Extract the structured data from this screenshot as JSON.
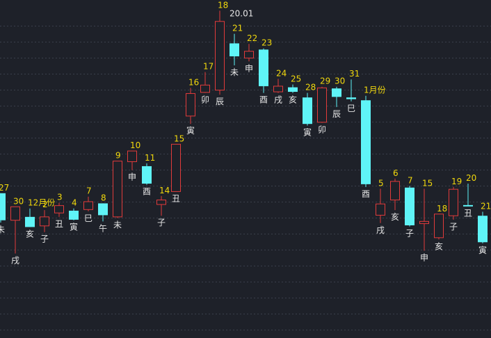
{
  "chart_data": {
    "type": "candlestick",
    "title": "",
    "xlabel": "",
    "ylabel": "",
    "ylim": [
      14.2,
      20.2
    ],
    "grid": true,
    "colors": {
      "up": "#e23b3b",
      "down": "#5ff4f7",
      "background": "#1e2129",
      "day_label": "#f1d80c",
      "branch_label": "#e6e6e6"
    },
    "peak_annotation": {
      "text": "20.01",
      "value": 20.01
    },
    "candles": [
      {
        "day": "27",
        "branch": "未",
        "open": 16.77,
        "close": 16.29,
        "high": 16.77,
        "low": 16.25
      },
      {
        "day": "30",
        "branch": "戌",
        "open": 16.29,
        "close": 16.53,
        "high": 16.53,
        "low": 15.7
      },
      {
        "day": "12月份",
        "branch": "亥",
        "open": 16.35,
        "close": 16.17,
        "high": 16.5,
        "low": 16.17
      },
      {
        "day": "2",
        "branch": "子",
        "open": 16.19,
        "close": 16.35,
        "high": 16.47,
        "low": 16.08
      },
      {
        "day": "3",
        "branch": "丑",
        "open": 16.42,
        "close": 16.55,
        "high": 16.6,
        "low": 16.35
      },
      {
        "day": "4",
        "branch": "寅",
        "open": 16.46,
        "close": 16.3,
        "high": 16.5,
        "low": 16.29
      },
      {
        "day": "7",
        "branch": "巳",
        "open": 16.48,
        "close": 16.62,
        "high": 16.71,
        "low": 16.45
      },
      {
        "day": "8",
        "branch": "午",
        "open": 16.59,
        "close": 16.38,
        "high": 16.59,
        "low": 16.27
      },
      {
        "day": "9",
        "branch": "未",
        "open": 16.35,
        "close": 17.34,
        "high": 17.34,
        "low": 16.33
      },
      {
        "day": "10",
        "branch": "申",
        "open": 17.33,
        "close": 17.52,
        "high": 17.52,
        "low": 17.18
      },
      {
        "day": "11",
        "branch": "酉",
        "open": 17.25,
        "close": 16.94,
        "high": 17.3,
        "low": 16.92
      },
      {
        "day": "14",
        "branch": "子",
        "open": 16.57,
        "close": 16.65,
        "high": 16.72,
        "low": 16.37
      },
      {
        "day": "15",
        "branch": "丑",
        "open": 16.8,
        "close": 17.64,
        "high": 17.64,
        "low": 16.8
      },
      {
        "day": "16",
        "branch": "寅",
        "open": 18.14,
        "close": 18.54,
        "high": 18.64,
        "low": 18.0
      },
      {
        "day": "17",
        "branch": "卯",
        "open": 18.56,
        "close": 18.69,
        "high": 18.92,
        "low": 18.55
      },
      {
        "day": "18",
        "branch": "辰",
        "open": 18.6,
        "close": 19.82,
        "high": 20.01,
        "low": 18.52
      },
      {
        "day": "21",
        "branch": "未",
        "open": 19.43,
        "close": 19.2,
        "high": 19.6,
        "low": 19.04
      },
      {
        "day": "22",
        "branch": "申",
        "open": 19.17,
        "close": 19.29,
        "high": 19.42,
        "low": 19.11
      },
      {
        "day": "23",
        "branch": "酉",
        "open": 19.32,
        "close": 18.67,
        "high": 19.34,
        "low": 18.55
      },
      {
        "day": "24",
        "branch": "戌",
        "open": 18.57,
        "close": 18.67,
        "high": 18.8,
        "low": 18.55
      },
      {
        "day": "25",
        "branch": "亥",
        "open": 18.65,
        "close": 18.57,
        "high": 18.7,
        "low": 18.55
      },
      {
        "day": "28",
        "branch": "寅",
        "open": 18.47,
        "close": 18.0,
        "high": 18.55,
        "low": 17.97
      },
      {
        "day": "29",
        "branch": "卯",
        "open": 18.03,
        "close": 18.64,
        "high": 18.66,
        "low": 18.02
      },
      {
        "day": "30",
        "branch": "辰",
        "open": 18.63,
        "close": 18.48,
        "high": 18.66,
        "low": 18.3
      },
      {
        "day": "31",
        "branch": "巳",
        "open": 18.47,
        "close": 18.44,
        "high": 18.79,
        "low": 18.4
      },
      {
        "day": "1月份",
        "branch": "酉",
        "open": 18.42,
        "close": 16.93,
        "high": 18.5,
        "low": 16.88
      },
      {
        "day": "5",
        "branch": "戌",
        "open": 16.38,
        "close": 16.58,
        "high": 16.85,
        "low": 16.24
      },
      {
        "day": "6",
        "branch": "亥",
        "open": 16.65,
        "close": 16.98,
        "high": 17.03,
        "low": 16.47
      },
      {
        "day": "7",
        "branch": "子",
        "open": 16.87,
        "close": 16.2,
        "high": 16.9,
        "low": 16.18
      },
      {
        "day": "15",
        "branch": "申",
        "open": 16.23,
        "close": 16.27,
        "high": 16.85,
        "low": 15.75
      },
      {
        "day": "18",
        "branch": "亥",
        "open": 15.98,
        "close": 16.4,
        "high": 16.4,
        "low": 15.95
      },
      {
        "day": "19",
        "branch": "子",
        "open": 16.37,
        "close": 16.84,
        "high": 16.88,
        "low": 16.3
      },
      {
        "day": "20",
        "branch": "丑",
        "open": 16.56,
        "close": 16.55,
        "high": 16.94,
        "low": 16.54
      },
      {
        "day": "21",
        "branch": "寅",
        "open": 16.37,
        "close": 15.9,
        "high": 16.44,
        "low": 15.88
      }
    ]
  }
}
